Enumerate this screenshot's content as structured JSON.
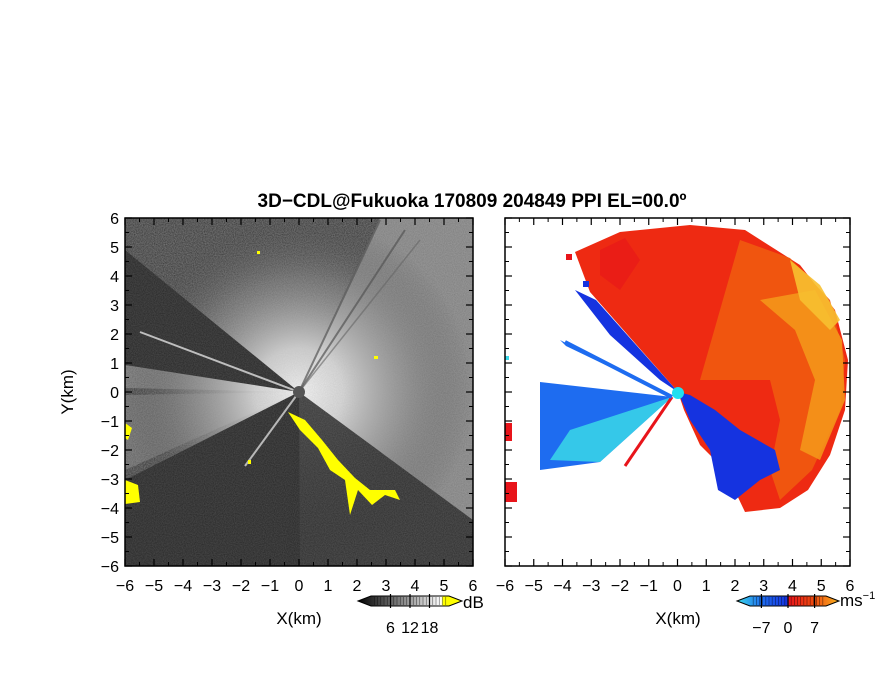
{
  "title": "3D−CDL@Fukuoka 170809 204849 PPI EL=00.0º",
  "chart_data": [
    {
      "type": "heatmap",
      "quantity": "reflectivity",
      "xlabel": "X(km)",
      "ylabel": "Y(km)",
      "xlim": [
        -6,
        6
      ],
      "ylim": [
        -6,
        6
      ],
      "xticks": [
        "−6",
        "−5",
        "−4",
        "−3",
        "−2",
        "−1",
        "0",
        "1",
        "2",
        "3",
        "4",
        "5",
        "6"
      ],
      "yticks": [
        "6",
        "5",
        "4",
        "3",
        "2",
        "1",
        "0",
        "−1",
        "−2",
        "−3",
        "−4",
        "−5",
        "−6"
      ],
      "colorbar": {
        "unit": "dB",
        "ticks": [
          6,
          12,
          18
        ],
        "tick_labels": [
          "6",
          "12",
          "18"
        ],
        "range": [
          0,
          24
        ],
        "colors": [
          "#000000",
          "#ffffff",
          "#ffff00"
        ]
      },
      "grid": false
    },
    {
      "type": "heatmap",
      "quantity": "doppler velocity",
      "xlabel": "X(km)",
      "ylabel": "",
      "xlim": [
        -6,
        6
      ],
      "ylim": [
        -6,
        6
      ],
      "xticks": [
        "−6",
        "−5",
        "−4",
        "−3",
        "−2",
        "−1",
        "0",
        "1",
        "2",
        "3",
        "4",
        "5",
        "6"
      ],
      "colorbar": {
        "unit": "ms",
        "unit_exp": "−1",
        "ticks": [
          -7,
          0,
          7
        ],
        "tick_labels": [
          "−7",
          "0",
          "7"
        ],
        "range": [
          -10,
          10
        ],
        "colors": [
          "#3ad8e8",
          "#1e6cf0",
          "#1533e0",
          "#e8141a",
          "#f04a10",
          "#f7b21e"
        ]
      },
      "grid": false
    }
  ]
}
